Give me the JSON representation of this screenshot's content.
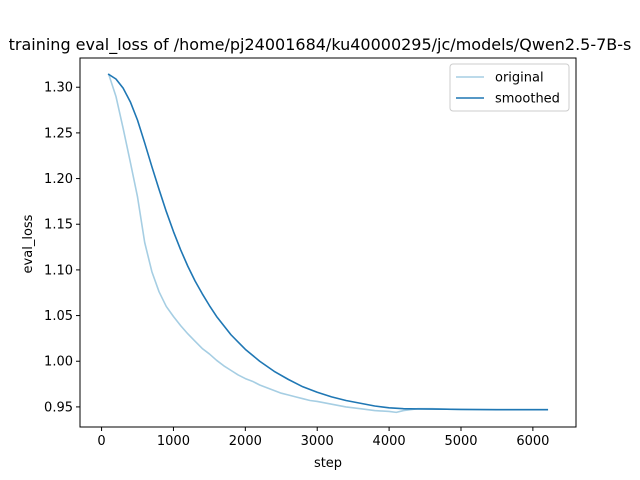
{
  "chart_data": {
    "type": "line",
    "title": "training eval_loss of /home/pj24001684/ku40000295/jc/models/Qwen2.5-7B-s",
    "xlabel": "step",
    "ylabel": "eval_loss",
    "xlim": [
      -300,
      6600
    ],
    "ylim": [
      0.928,
      1.332
    ],
    "xticks": [
      0,
      1000,
      2000,
      3000,
      4000,
      5000,
      6000
    ],
    "xtick_labels": [
      "0",
      "1000",
      "2000",
      "3000",
      "4000",
      "5000",
      "6000"
    ],
    "yticks": [
      0.95,
      1.0,
      1.05,
      1.1,
      1.15,
      1.2,
      1.25,
      1.3
    ],
    "ytick_labels": [
      "0.95",
      "1.00",
      "1.05",
      "1.10",
      "1.15",
      "1.20",
      "1.25",
      "1.30"
    ],
    "grid": false,
    "legend_position": "upper-right",
    "series": [
      {
        "name": "original",
        "color": "#a6cee3",
        "x": [
          100,
          200,
          300,
          400,
          500,
          600,
          700,
          800,
          900,
          1000,
          1100,
          1200,
          1300,
          1400,
          1500,
          1600,
          1700,
          1800,
          1900,
          2000,
          2100,
          2200,
          2300,
          2400,
          2500,
          2600,
          2700,
          2800,
          2900,
          3000,
          3200,
          3400,
          3600,
          3800,
          4000,
          4100,
          4200,
          4400,
          4600,
          5000,
          5500,
          6000,
          6200
        ],
        "y": [
          1.314,
          1.29,
          1.255,
          1.218,
          1.18,
          1.13,
          1.098,
          1.076,
          1.06,
          1.049,
          1.039,
          1.03,
          1.022,
          1.014,
          1.008,
          1.001,
          0.995,
          0.99,
          0.985,
          0.981,
          0.978,
          0.974,
          0.971,
          0.968,
          0.965,
          0.963,
          0.961,
          0.959,
          0.957,
          0.956,
          0.953,
          0.95,
          0.948,
          0.946,
          0.945,
          0.944,
          0.946,
          0.948,
          0.948,
          0.947,
          0.947,
          0.947,
          0.947
        ]
      },
      {
        "name": "smoothed",
        "color": "#1f77b4",
        "x": [
          100,
          200,
          300,
          400,
          500,
          600,
          700,
          800,
          900,
          1000,
          1100,
          1200,
          1300,
          1400,
          1500,
          1600,
          1700,
          1800,
          1900,
          2000,
          2200,
          2400,
          2600,
          2800,
          3000,
          3200,
          3400,
          3600,
          3800,
          4000,
          4200,
          4400,
          4600,
          5000,
          5500,
          6000,
          6200
        ],
        "y": [
          1.314,
          1.309,
          1.299,
          1.284,
          1.264,
          1.239,
          1.213,
          1.188,
          1.164,
          1.142,
          1.122,
          1.104,
          1.088,
          1.074,
          1.061,
          1.049,
          1.039,
          1.029,
          1.021,
          1.013,
          1.0,
          0.989,
          0.98,
          0.972,
          0.966,
          0.961,
          0.957,
          0.954,
          0.951,
          0.949,
          0.948,
          0.9478,
          0.9476,
          0.9473,
          0.947,
          0.947,
          0.947
        ]
      }
    ]
  }
}
